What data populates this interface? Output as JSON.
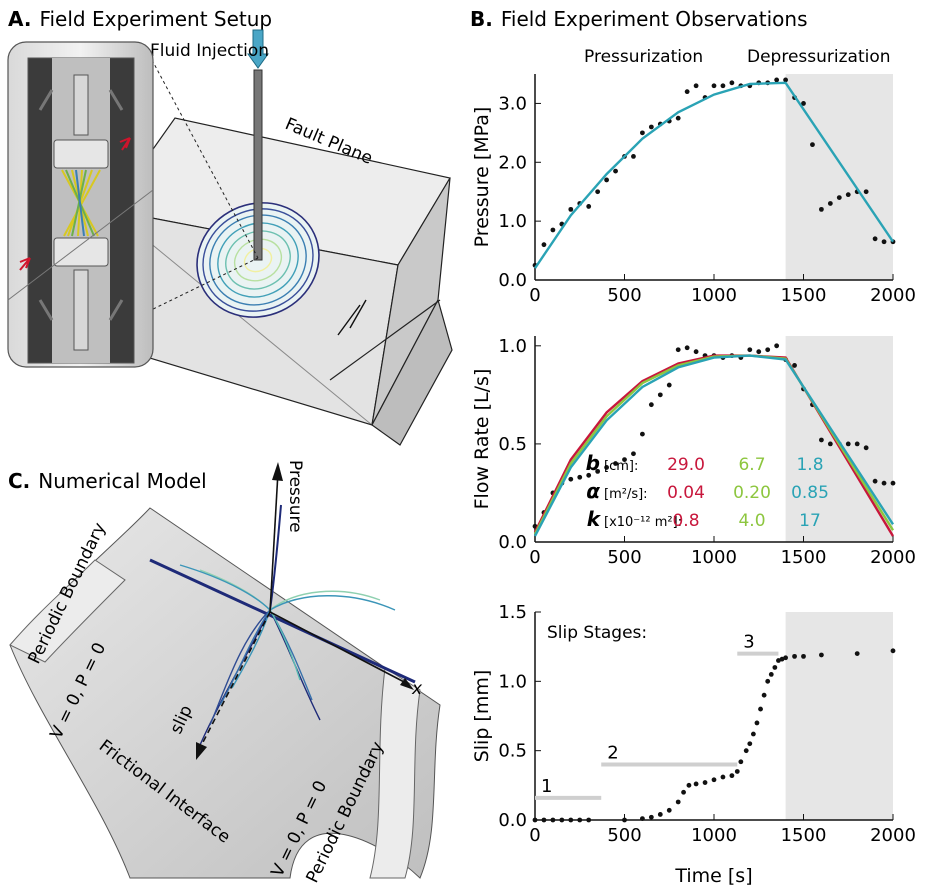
{
  "panels": {
    "a": {
      "letter": "A.",
      "title": "Field Experiment Setup",
      "fluid_injection": "Fluid Injection",
      "fault_plane": "Fault Plane"
    },
    "b": {
      "letter": "B.",
      "title": "Field Experiment Observations",
      "pressurization": "Pressurization",
      "depressurization": "Depressurization"
    },
    "c": {
      "letter": "C.",
      "title": "Numerical Model",
      "pressure": "Pressure",
      "x": "x",
      "slip": "slip",
      "periodic_boundary": "Periodic Boundary",
      "bc": "V = 0, P = 0",
      "frictional_interface": "Frictional Interface"
    }
  },
  "params_table": {
    "rows": [
      {
        "sym": "b",
        "unit": "[cm]:",
        "values": [
          "29.0",
          "6.7",
          "1.8"
        ]
      },
      {
        "sym": "α",
        "unit": "[m²/s]:",
        "values": [
          "0.04",
          "0.20",
          "0.85"
        ]
      },
      {
        "sym": "k",
        "unit": "[x10⁻¹² m²]:",
        "values": [
          "0.8",
          "4.0",
          "17"
        ]
      }
    ],
    "colors": [
      "#c8173c",
      "#8dc63f",
      "#2aa3b5"
    ]
  },
  "chart_data": [
    {
      "type": "line",
      "ylabel": "Pressure [MPa]",
      "xlim": [
        0,
        2000
      ],
      "ylim": [
        0,
        3.5
      ],
      "xticks": [
        "0",
        "500",
        "1000",
        "1500",
        "2000"
      ],
      "yticks": [
        "0.0",
        "1.0",
        "2.0",
        "3.0"
      ],
      "shaded_region": [
        1400,
        2000
      ],
      "series": [
        {
          "color": "#2aa3b5",
          "x": [
            0,
            200,
            400,
            600,
            800,
            1000,
            1200,
            1400,
            2000
          ],
          "y": [
            0.2,
            1.1,
            1.8,
            2.4,
            2.85,
            3.15,
            3.33,
            3.35,
            0.65
          ]
        }
      ],
      "observations": {
        "x": [
          0,
          50,
          100,
          150,
          200,
          250,
          300,
          350,
          400,
          450,
          500,
          550,
          600,
          650,
          700,
          750,
          800,
          850,
          900,
          950,
          1000,
          1050,
          1100,
          1150,
          1200,
          1250,
          1300,
          1350,
          1400,
          1450,
          1500,
          1550,
          1600,
          1650,
          1700,
          1750,
          1800,
          1850,
          1900,
          1950,
          2000
        ],
        "y": [
          0.25,
          0.6,
          0.85,
          0.95,
          1.2,
          1.3,
          1.25,
          1.5,
          1.7,
          1.85,
          2.1,
          2.1,
          2.5,
          2.6,
          2.65,
          2.7,
          2.75,
          3.2,
          3.3,
          3.1,
          3.3,
          3.3,
          3.35,
          3.3,
          3.3,
          3.35,
          3.35,
          3.4,
          3.4,
          3.1,
          3.0,
          2.3,
          1.2,
          1.3,
          1.4,
          1.45,
          1.5,
          1.5,
          0.7,
          0.65,
          0.65
        ]
      }
    },
    {
      "type": "line",
      "ylabel": "Flow Rate [L/s]",
      "xlim": [
        0,
        2000
      ],
      "ylim": [
        0,
        1.05
      ],
      "xticks": [
        "0",
        "500",
        "1000",
        "1500",
        "2000"
      ],
      "yticks": [
        "0.0",
        "0.5",
        "1.0"
      ],
      "shaded_region": [
        1400,
        2000
      ],
      "series": [
        {
          "color": "#c8173c",
          "x": [
            0,
            200,
            400,
            600,
            800,
            1000,
            1200,
            1400,
            2000
          ],
          "y": [
            0.05,
            0.42,
            0.66,
            0.82,
            0.91,
            0.95,
            0.95,
            0.94,
            0.03
          ]
        },
        {
          "color": "#8dc63f",
          "x": [
            0,
            200,
            400,
            600,
            800,
            1000,
            1200,
            1400,
            2000
          ],
          "y": [
            0.04,
            0.4,
            0.64,
            0.81,
            0.9,
            0.945,
            0.95,
            0.935,
            0.06
          ]
        },
        {
          "color": "#2aa3b5",
          "x": [
            0,
            200,
            400,
            600,
            800,
            1000,
            1200,
            1400,
            2000
          ],
          "y": [
            0.03,
            0.38,
            0.62,
            0.79,
            0.89,
            0.94,
            0.95,
            0.93,
            0.09
          ]
        }
      ],
      "observations": {
        "x": [
          0,
          50,
          100,
          150,
          200,
          250,
          300,
          350,
          400,
          450,
          500,
          550,
          600,
          650,
          700,
          750,
          800,
          850,
          900,
          950,
          1000,
          1050,
          1100,
          1150,
          1200,
          1250,
          1300,
          1350,
          1400,
          1450,
          1500,
          1550,
          1600,
          1650,
          1700,
          1750,
          1800,
          1850,
          1900,
          1950,
          2000
        ],
        "y": [
          0.08,
          0.15,
          0.25,
          0.3,
          0.32,
          0.33,
          0.34,
          0.36,
          0.38,
          0.4,
          0.42,
          0.45,
          0.55,
          0.7,
          0.75,
          0.8,
          0.98,
          0.99,
          0.97,
          0.95,
          0.95,
          0.94,
          0.95,
          0.94,
          0.98,
          0.97,
          0.98,
          1.0,
          0.93,
          0.9,
          0.78,
          0.7,
          0.52,
          0.5,
          0.5,
          0.5,
          0.5,
          0.48,
          0.31,
          0.3,
          0.3
        ]
      }
    },
    {
      "type": "scatter",
      "xlabel": "Time [s]",
      "ylabel": "Slip [mm]",
      "xlim": [
        0,
        2000
      ],
      "ylim": [
        0,
        1.5
      ],
      "xticks": [
        "0",
        "500",
        "1000",
        "1500",
        "2000"
      ],
      "yticks": [
        "0.0",
        "0.5",
        "1.0",
        "1.5"
      ],
      "shaded_region": [
        1400,
        2000
      ],
      "annotation": "Slip Stages:",
      "stages": [
        {
          "label": "1",
          "x": [
            0,
            370
          ],
          "y": 0.16
        },
        {
          "label": "2",
          "x": [
            370,
            1130
          ],
          "y": 0.4
        },
        {
          "label": "3",
          "x": [
            1130,
            1360
          ],
          "y": 1.2
        }
      ],
      "observations": {
        "x": [
          0,
          50,
          100,
          150,
          200,
          250,
          300,
          500,
          600,
          650,
          700,
          750,
          800,
          830,
          860,
          900,
          950,
          1000,
          1050,
          1100,
          1130,
          1150,
          1180,
          1200,
          1220,
          1240,
          1260,
          1280,
          1300,
          1320,
          1340,
          1360,
          1380,
          1400,
          1450,
          1500,
          1600,
          1800,
          2000
        ],
        "y": [
          0.0,
          0.0,
          0.0,
          0.0,
          0.0,
          0.0,
          0.0,
          0.0,
          0.01,
          0.02,
          0.04,
          0.07,
          0.13,
          0.2,
          0.25,
          0.26,
          0.27,
          0.29,
          0.31,
          0.32,
          0.35,
          0.42,
          0.5,
          0.55,
          0.62,
          0.7,
          0.8,
          0.9,
          1.0,
          1.05,
          1.1,
          1.15,
          1.16,
          1.17,
          1.18,
          1.18,
          1.19,
          1.2,
          1.22
        ]
      }
    }
  ]
}
